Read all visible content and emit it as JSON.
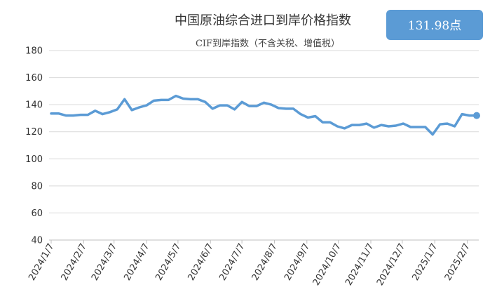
{
  "badge": {
    "text": "131.98点",
    "color": "#5B9BD5"
  },
  "chart_data": {
    "type": "line",
    "title": "中国原油综合进口到岸价格指数",
    "subtitle": "CIF到岸指数（不含关税、增值税）",
    "xlabel": "",
    "ylabel": "",
    "ylim": [
      40,
      180
    ],
    "yticks": [
      40,
      60,
      80,
      100,
      120,
      140,
      160,
      180
    ],
    "grid": true,
    "x_tick_labels": [
      "2024/1/7",
      "2024/2/7",
      "2024/3/7",
      "2024/4/7",
      "2024/5/7",
      "2024/6/7",
      "2024/7/7",
      "2024/8/7",
      "2024/9/7",
      "2024/10/7",
      "2024/11/7",
      "2024/12/7",
      "2025/1/7",
      "2025/2/7"
    ],
    "series_color": "#5B9BD5",
    "series": [
      {
        "x": [
          "2024/1/7",
          "2024/1/14",
          "2024/1/21",
          "2024/1/28",
          "2024/2/4",
          "2024/2/11",
          "2024/2/18",
          "2024/2/25",
          "2024/3/3",
          "2024/3/10",
          "2024/3/17",
          "2024/3/24",
          "2024/3/31",
          "2024/4/7",
          "2024/4/14",
          "2024/4/21",
          "2024/4/28",
          "2024/5/5",
          "2024/5/12",
          "2024/5/19",
          "2024/5/26",
          "2024/6/2",
          "2024/6/9",
          "2024/6/16",
          "2024/6/23",
          "2024/6/30",
          "2024/7/7",
          "2024/7/14",
          "2024/7/21",
          "2024/7/28",
          "2024/8/4",
          "2024/8/11",
          "2024/8/18",
          "2024/8/25",
          "2024/9/1",
          "2024/9/8",
          "2024/9/15",
          "2024/9/22",
          "2024/9/29",
          "2024/10/6",
          "2024/10/13",
          "2024/10/20",
          "2024/10/27",
          "2024/11/3",
          "2024/11/10",
          "2024/11/17",
          "2024/11/24",
          "2024/12/1",
          "2024/12/8",
          "2024/12/15",
          "2024/12/22",
          "2024/12/29",
          "2025/1/5",
          "2025/1/12",
          "2025/1/19",
          "2025/1/26",
          "2025/2/2",
          "2025/2/9",
          "2025/2/16"
        ],
        "values": [
          133.5,
          133.5,
          132,
          132,
          132.5,
          132.5,
          135.5,
          133,
          134.5,
          136.5,
          144,
          136,
          138,
          139.5,
          143,
          143.5,
          143.5,
          146.5,
          144.5,
          144,
          144,
          142,
          137,
          139.5,
          139.5,
          136.5,
          142,
          139,
          139,
          141.5,
          140,
          137.5,
          137,
          137,
          133,
          130.5,
          131.5,
          127,
          127,
          124,
          122.5,
          125,
          125,
          126,
          123,
          125,
          124,
          124.5,
          126,
          123.5,
          123.5,
          123.5,
          118,
          125.5,
          126,
          124,
          133,
          132,
          131.98
        ]
      }
    ]
  }
}
